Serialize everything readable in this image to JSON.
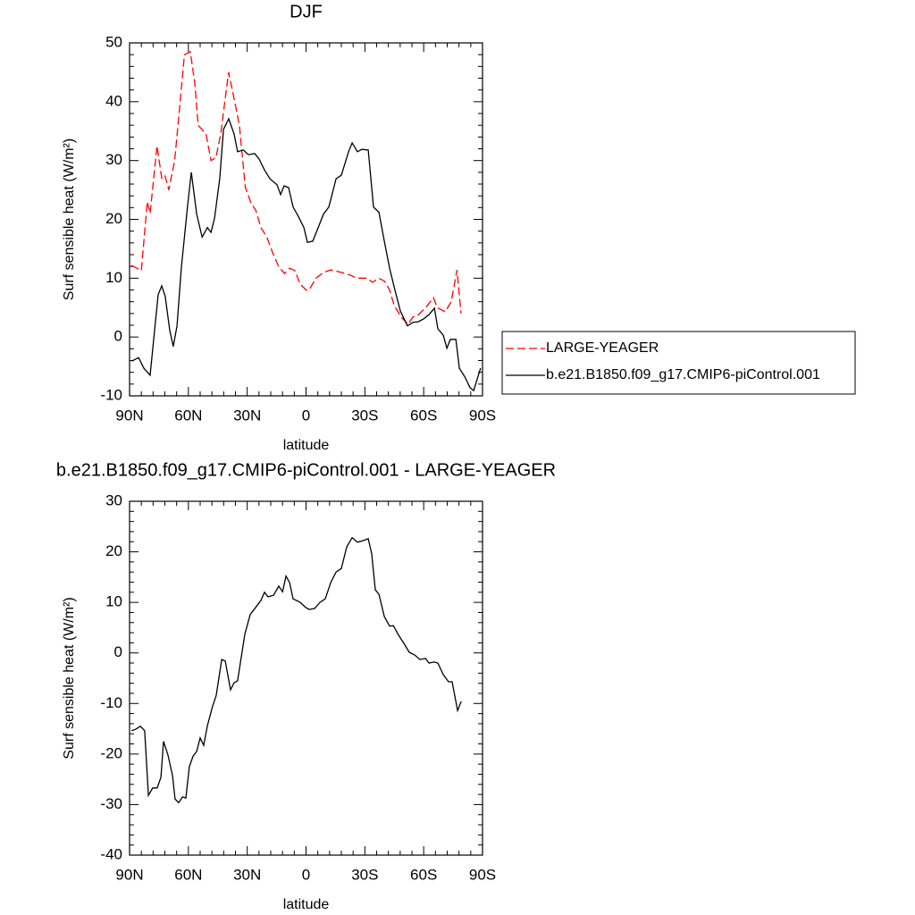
{
  "chart_data": [
    {
      "type": "line",
      "title": "DJF",
      "x_label": "latitude",
      "y_label": "Surf sensible heat (W/m²)",
      "xlim": [
        90,
        -90
      ],
      "xticks": [
        {
          "value": 90,
          "label": "90N"
        },
        {
          "value": 60,
          "label": "60N"
        },
        {
          "value": 30,
          "label": "30N"
        },
        0,
        {
          "value": -30,
          "label": "30S"
        },
        {
          "value": -60,
          "label": "60S"
        },
        {
          "value": -90,
          "label": "90S"
        }
      ],
      "ylim": [
        -10,
        50
      ],
      "yticks": [
        -10,
        0,
        10,
        20,
        30,
        40,
        50
      ],
      "legend": "outside-right",
      "series": [
        {
          "name": "LARGE-YEAGER",
          "color": "#ff0000",
          "dash": "dashed",
          "x": [
            89,
            84,
            81,
            79.5,
            76,
            73.6,
            72,
            70,
            67,
            64.5,
            62,
            59,
            56.7,
            55,
            51,
            48.5,
            46,
            43.5,
            39.5,
            36.7,
            34,
            31,
            28,
            25.7,
            23,
            20,
            17,
            14,
            11,
            8.4,
            5.7,
            3,
            0,
            -1.6,
            -5,
            -9,
            -12.5,
            -18,
            -22.6,
            -26,
            -31,
            -34,
            -37,
            -40,
            -42.6,
            -45,
            -49,
            -52,
            -54.5,
            -57,
            -61,
            -65,
            -67,
            -71,
            -74,
            -77,
            -79
          ],
          "values": [
            12.2,
            11.3,
            23,
            21,
            32.5,
            27,
            27.5,
            25,
            30,
            39,
            48,
            48.5,
            43,
            36,
            34.5,
            30,
            30.5,
            34.5,
            45,
            40.5,
            36,
            25.5,
            22.7,
            21.6,
            18.6,
            17,
            14.3,
            12,
            10.8,
            11.7,
            11.3,
            9,
            8,
            8,
            10,
            11,
            11.4,
            11,
            10.5,
            10,
            10,
            9.3,
            10,
            9.5,
            8,
            5.3,
            3.2,
            2.2,
            3.4,
            3.7,
            5,
            6.7,
            5,
            4.3,
            6,
            11.4,
            4
          ]
        },
        {
          "name": "b.e21.B1850.f09_g17.CMIP6-piControl.001",
          "color": "#000000",
          "dash": "solid",
          "x": [
            89,
            85.4,
            82.7,
            79.5,
            77.7,
            75.4,
            73.6,
            71.8,
            69.5,
            67.7,
            65.8,
            63.6,
            60.4,
            58.5,
            55.8,
            53,
            50.3,
            48.5,
            46.7,
            44,
            42.1,
            39.4,
            36.7,
            34.9,
            32,
            29.4,
            26.2,
            24,
            21.2,
            18.4,
            14.8,
            13,
            11.2,
            8.9,
            6.6,
            3.9,
            1.1,
            -0.7,
            -3.4,
            -6.2,
            -8.9,
            -11.6,
            -15.3,
            -18,
            -21.7,
            -23.5,
            -26.2,
            -28.5,
            -31.7,
            -34.4,
            -37.2,
            -39.9,
            -42.6,
            -45.4,
            -48.1,
            -51.7,
            -54.5,
            -57.2,
            -60,
            -62.7,
            -65.5,
            -67.2,
            -70,
            -71.8,
            -73.6,
            -76.4,
            -78.2,
            -81,
            -83.6,
            -85.5,
            -89
          ],
          "values": [
            -4.1,
            -3.5,
            -5.3,
            -6.5,
            -0.4,
            7.2,
            8.7,
            6.9,
            1.1,
            -1.6,
            1.9,
            11.7,
            22.4,
            28,
            20.9,
            17,
            18.6,
            17.8,
            20.1,
            26.9,
            35.3,
            37.1,
            34.5,
            31.5,
            31.8,
            31,
            31.2,
            30.3,
            28.4,
            26.9,
            25.9,
            24.2,
            25.7,
            25.4,
            22.1,
            20.5,
            18.6,
            16.1,
            16.3,
            18.6,
            20.9,
            22.1,
            26.9,
            27.5,
            31.5,
            33,
            31.5,
            31.9,
            31.8,
            22.1,
            21.2,
            16.3,
            11.7,
            7.9,
            4.4,
            1.9,
            2.5,
            2.6,
            3.1,
            3.8,
            4.9,
            1.4,
            0.3,
            -1.9,
            -0.4,
            -0.4,
            -5.3,
            -6.8,
            -8.6,
            -9.1,
            -5.3
          ]
        }
      ]
    },
    {
      "type": "line",
      "title": "b.e21.B1850.f09_g17.CMIP6-piControl.001 - LARGE-YEAGER",
      "x_label": "latitude",
      "y_label": "Surf sensible heat (W/m²)",
      "xlim": [
        90,
        -90
      ],
      "xticks": [
        {
          "value": 90,
          "label": "90N"
        },
        {
          "value": 60,
          "label": "60N"
        },
        {
          "value": 30,
          "label": "30N"
        },
        0,
        {
          "value": -30,
          "label": "30S"
        },
        {
          "value": -60,
          "label": "60S"
        },
        {
          "value": -90,
          "label": "90S"
        }
      ],
      "ylim": [
        -40,
        30
      ],
      "yticks": [
        -40,
        -30,
        -20,
        -10,
        0,
        10,
        20,
        30
      ],
      "series": [
        {
          "color": "#000000",
          "dash": "solid",
          "x": [
            89,
            86.8,
            84.5,
            82.3,
            80.4,
            78.2,
            75.9,
            74,
            72.7,
            70.4,
            68.1,
            66.8,
            65,
            63,
            61.3,
            59.5,
            57.6,
            55.8,
            54,
            52.2,
            50.3,
            47.6,
            45.8,
            43,
            41.2,
            38.5,
            36.7,
            34.9,
            31.2,
            28.5,
            25.7,
            23,
            21.2,
            19.4,
            16.6,
            13.9,
            12,
            10.2,
            8.4,
            6.6,
            3,
            0.2,
            -1.6,
            -4.4,
            -7.1,
            -9.8,
            -12.6,
            -15.3,
            -18,
            -20.8,
            -23.5,
            -26.2,
            -29,
            -31.7,
            -33.5,
            -35.3,
            -37.2,
            -39.9,
            -42.6,
            -44.5,
            -47.2,
            -49.9,
            -52.7,
            -55.4,
            -58.1,
            -60.9,
            -62.7,
            -65.4,
            -67.2,
            -70,
            -72.7,
            -74.5,
            -77.3,
            -79.1
          ],
          "values": [
            -15.4,
            -15.1,
            -14.5,
            -15.4,
            -28.2,
            -26.7,
            -26.7,
            -24.6,
            -17.5,
            -20.2,
            -24.3,
            -28.9,
            -29.6,
            -28.5,
            -28.7,
            -22.5,
            -20.4,
            -19.5,
            -16.8,
            -18.3,
            -14.4,
            -10.5,
            -8.4,
            -1.3,
            -1.6,
            -7.3,
            -5.9,
            -5.5,
            3.7,
            7.6,
            9,
            10.4,
            12,
            11.1,
            11.4,
            13.2,
            12.1,
            15.2,
            13.9,
            10.7,
            10,
            9,
            8.6,
            8.8,
            10,
            10.7,
            13.9,
            16,
            16.7,
            21,
            22.8,
            21.9,
            22.2,
            22.6,
            19.6,
            12.5,
            11.6,
            7.2,
            5.3,
            5.4,
            3.5,
            1.9,
            0.1,
            -0.4,
            -1.3,
            -1.1,
            -2,
            -1.8,
            -2,
            -4.3,
            -5.7,
            -5.7,
            -11.4,
            -9.6
          ]
        }
      ]
    }
  ]
}
